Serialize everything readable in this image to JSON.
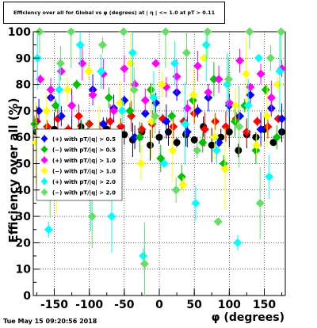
{
  "title": "Efficiency over all for Global vs φ (degrees) at | η | <= 1.0 at pT > 0.11",
  "datestamp": "Tue May 15 09:20:56 2018",
  "chart_data": {
    "type": "scatter",
    "title": "Efficiency over all for Global vs φ (degrees) at | η | <= 1.0 at pT > 0.11",
    "xlabel": "φ (degrees)",
    "ylabel": "Efficiency over all (%)",
    "xlim": [
      -180,
      180
    ],
    "ylim": [
      0,
      100
    ],
    "xticks": [
      -150,
      -100,
      -50,
      0,
      50,
      100,
      150
    ],
    "yticks": [
      0,
      10,
      20,
      30,
      40,
      50,
      60,
      70,
      80,
      90,
      100
    ],
    "grid": true,
    "legend_position": "center-left",
    "legend": [
      {
        "label": "(+) with pT/|q| > 0.5",
        "color": "#0000ff"
      },
      {
        "label": "(−) with pT/|q| > 0.5",
        "color": "#00c000"
      },
      {
        "label": "(+) with pT/|q| > 1.0",
        "color": "#ff00ff"
      },
      {
        "label": "(−) with pT/|q| > 1.0",
        "color": "#ffff00"
      },
      {
        "label": "(+) with pT/|q| > 2.0",
        "color": "#00ffff"
      },
      {
        "label": "(−) with pT/|q| > 2.0",
        "color": "#66dd66"
      }
    ],
    "series": [
      {
        "color": "#000000",
        "marker": "circle",
        "points": [
          [
            -175,
            62
          ],
          [
            -163,
            60
          ],
          [
            -150,
            63
          ],
          [
            -138,
            58
          ],
          [
            -125,
            61
          ],
          [
            -112,
            64
          ],
          [
            -100,
            57
          ],
          [
            -88,
            60
          ],
          [
            -75,
            63
          ],
          [
            -63,
            58
          ],
          [
            -50,
            61
          ],
          [
            -38,
            59
          ],
          [
            -25,
            62
          ],
          [
            -13,
            57
          ],
          [
            0,
            60
          ],
          [
            13,
            62
          ],
          [
            25,
            58
          ],
          [
            38,
            61
          ],
          [
            50,
            59
          ],
          [
            63,
            64
          ],
          [
            75,
            57
          ],
          [
            88,
            60
          ],
          [
            100,
            62
          ],
          [
            113,
            55
          ],
          [
            125,
            61
          ],
          [
            138,
            60
          ],
          [
            150,
            63
          ],
          [
            163,
            58
          ],
          [
            175,
            62
          ]
        ]
      },
      {
        "color": "#ff0000",
        "marker": "diamond",
        "points": [
          [
            -175,
            66
          ],
          [
            -160,
            64
          ],
          [
            -145,
            67
          ],
          [
            -130,
            63
          ],
          [
            -115,
            68
          ],
          [
            -100,
            65
          ],
          [
            -85,
            62
          ],
          [
            -70,
            66
          ],
          [
            -55,
            64
          ],
          [
            -40,
            68
          ],
          [
            -25,
            63
          ],
          [
            -10,
            65
          ],
          [
            5,
            67
          ],
          [
            20,
            64
          ],
          [
            35,
            66
          ],
          [
            50,
            69
          ],
          [
            65,
            63
          ],
          [
            80,
            66
          ],
          [
            95,
            64
          ],
          [
            110,
            67
          ],
          [
            125,
            62
          ],
          [
            140,
            66
          ],
          [
            155,
            64
          ],
          [
            170,
            67
          ]
        ]
      },
      {
        "color": "#0000ff",
        "marker": "diamond",
        "points": [
          [
            -172,
            70
          ],
          [
            -155,
            75
          ],
          [
            -140,
            68
          ],
          [
            -125,
            72
          ],
          [
            -110,
            55
          ],
          [
            -95,
            78
          ],
          [
            -80,
            65
          ],
          [
            -65,
            71
          ],
          [
            -50,
            74
          ],
          [
            -35,
            60
          ],
          [
            -20,
            69
          ],
          [
            -5,
            73
          ],
          [
            10,
            66
          ],
          [
            25,
            77
          ],
          [
            40,
            62
          ],
          [
            55,
            70
          ],
          [
            70,
            75
          ],
          [
            85,
            58
          ],
          [
            100,
            72
          ],
          [
            115,
            68
          ],
          [
            130,
            76
          ],
          [
            145,
            63
          ],
          [
            160,
            71
          ],
          [
            175,
            67
          ]
        ]
      },
      {
        "color": "#00c000",
        "marker": "diamond",
        "points": [
          [
            -178,
            65
          ],
          [
            -162,
            58
          ],
          [
            -148,
            72
          ],
          [
            -132,
            48
          ],
          [
            -118,
            80
          ],
          [
            -102,
            62
          ],
          [
            -88,
            55
          ],
          [
            -72,
            75
          ],
          [
            -58,
            50
          ],
          [
            -42,
            70
          ],
          [
            -28,
            60
          ],
          [
            -12,
            78
          ],
          [
            2,
            52
          ],
          [
            18,
            68
          ],
          [
            32,
            45
          ],
          [
            48,
            74
          ],
          [
            62,
            58
          ],
          [
            78,
            82
          ],
          [
            92,
            50
          ],
          [
            108,
            66
          ],
          [
            122,
            72
          ],
          [
            138,
            55
          ],
          [
            152,
            78
          ],
          [
            168,
            60
          ]
        ]
      },
      {
        "color": "#ff00ff",
        "marker": "diamond",
        "points": [
          [
            -170,
            82
          ],
          [
            -155,
            78
          ],
          [
            -140,
            85
          ],
          [
            -125,
            72
          ],
          [
            -110,
            88
          ],
          [
            -95,
            76
          ],
          [
            -80,
            84
          ],
          [
            -65,
            70
          ],
          [
            -50,
            86
          ],
          [
            -35,
            80
          ],
          [
            -20,
            74
          ],
          [
            -5,
            88
          ],
          [
            10,
            79
          ],
          [
            25,
            83
          ],
          [
            40,
            71
          ],
          [
            55,
            87
          ],
          [
            70,
            77
          ],
          [
            85,
            82
          ],
          [
            100,
            73
          ],
          [
            115,
            89
          ],
          [
            130,
            79
          ],
          [
            145,
            84
          ],
          [
            160,
            75
          ],
          [
            175,
            86
          ]
        ]
      },
      {
        "color": "#ffff00",
        "marker": "diamond",
        "points": [
          [
            -176,
            58
          ],
          [
            -161,
            70
          ],
          [
            -147,
            45
          ],
          [
            -131,
            78
          ],
          [
            -116,
            52
          ],
          [
            -101,
            85
          ],
          [
            -86,
            62
          ],
          [
            -71,
            40
          ],
          [
            -56,
            73
          ],
          [
            -41,
            88
          ],
          [
            -26,
            50
          ],
          [
            -11,
            66
          ],
          [
            4,
            80
          ],
          [
            19,
            55
          ],
          [
            34,
            42
          ],
          [
            49,
            76
          ],
          [
            64,
            90
          ],
          [
            79,
            60
          ],
          [
            94,
            48
          ],
          [
            109,
            72
          ],
          [
            124,
            84
          ],
          [
            139,
            57
          ],
          [
            154,
            68
          ],
          [
            169,
            80
          ]
        ]
      },
      {
        "color": "#00ffff",
        "marker": "diamond",
        "points": [
          [
            -174,
            90
          ],
          [
            -158,
            25
          ],
          [
            -143,
            78
          ],
          [
            -128,
            60
          ],
          [
            -113,
            95
          ],
          [
            -98,
            40
          ],
          [
            -83,
            85
          ],
          [
            -68,
            30
          ],
          [
            -53,
            70
          ],
          [
            -38,
            92
          ],
          [
            -23,
            15
          ],
          [
            -8,
            75
          ],
          [
            7,
            50
          ],
          [
            22,
            88
          ],
          [
            37,
            65
          ],
          [
            52,
            35
          ],
          [
            67,
            95
          ],
          [
            82,
            55
          ],
          [
            97,
            80
          ],
          [
            112,
            20
          ],
          [
            127,
            72
          ],
          [
            142,
            90
          ],
          [
            157,
            45
          ],
          [
            172,
            85
          ]
        ]
      },
      {
        "color": "#66dd66",
        "marker": "diamond",
        "points": [
          [
            -171,
            100
          ],
          [
            -156,
            45
          ],
          [
            -141,
            88
          ],
          [
            -126,
            100
          ],
          [
            -111,
            62
          ],
          [
            -96,
            30
          ],
          [
            -81,
            95
          ],
          [
            -66,
            52
          ],
          [
            -51,
            100
          ],
          [
            -36,
            78
          ],
          [
            -21,
            12
          ],
          [
            -6,
            68
          ],
          [
            9,
            100
          ],
          [
            24,
            40
          ],
          [
            39,
            92
          ],
          [
            54,
            55
          ],
          [
            69,
            100
          ],
          [
            84,
            28
          ],
          [
            99,
            82
          ],
          [
            114,
            64
          ],
          [
            129,
            100
          ],
          [
            144,
            35
          ],
          [
            159,
            90
          ],
          [
            174,
            100
          ]
        ]
      }
    ]
  }
}
